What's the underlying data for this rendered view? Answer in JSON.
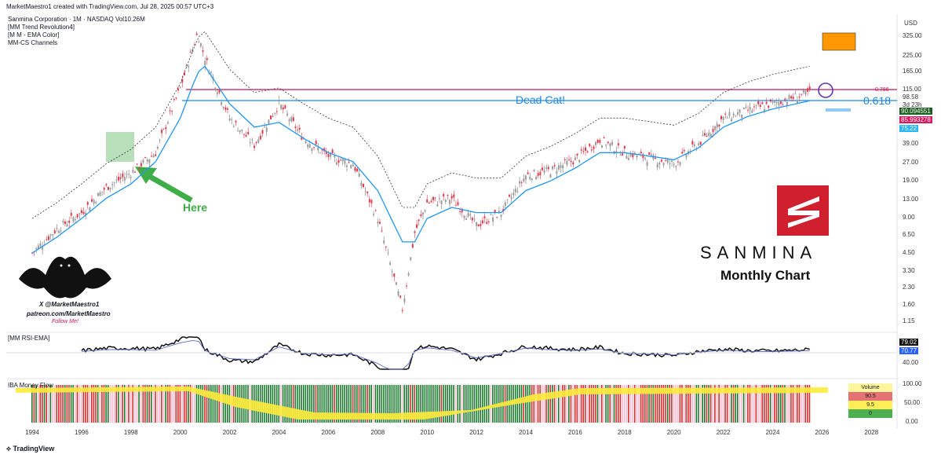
{
  "header": {
    "creator": "MarketMaestro1 created with TradingView.com, Jul 28, 2025 00:57 UTC+3",
    "symbol_line": "Sanmina Corporation · 1M · NASDAQ  Vol10.26M",
    "indicator_1": "[MM Trend Revolution4]",
    "indicator_2": "[M M - EMA Color]",
    "indicator_3": "MM-CS Channels",
    "currency": "USD"
  },
  "price_axis": [
    "325.00",
    "225.00",
    "165.00",
    "115.00",
    "98.58",
    "3d 23h",
    "39.00",
    "27.00",
    "19.00",
    "13.00",
    "9.00",
    "6.50",
    "4.50",
    "3.30",
    "2.30",
    "1.60",
    "1.15"
  ],
  "price_tags": {
    "last": "90.094551",
    "ema": "85.993278",
    "lower": "75.22",
    "fib_786": "0.786",
    "fib_618": "0.618"
  },
  "annotations": {
    "dead_cat": "Dead Cat!",
    "here": "Here",
    "brand": "SANMINA",
    "chart_label": "Monthly Chart",
    "author_1": "X @MarketMaestro1",
    "author_2": "patreon.com/MarketMaestro",
    "author_3": "Follow Me!"
  },
  "rsi": {
    "title": "[MM RSI-EMA]",
    "value_1": "79.02",
    "value_2": "70.77",
    "axis_40": "40.00"
  },
  "money": {
    "title": "IBA Money Flow",
    "axis": [
      "100.00",
      "50.00",
      "0.00"
    ],
    "vol_label": "Volume",
    "vol_1": "90.5",
    "vol_2": "9.5",
    "vol_3": "0"
  },
  "x_axis": [
    "1994",
    "1996",
    "1998",
    "2000",
    "2002",
    "2004",
    "2006",
    "2008",
    "2010",
    "2012",
    "2014",
    "2016",
    "2018",
    "2020",
    "2022",
    "2024",
    "2026",
    "2028"
  ],
  "footer": "TradingView",
  "colors": {
    "up": "#9c9c9c",
    "down": "#e03b4c",
    "ema": "#2196f3",
    "fib_pink": "#c2185b",
    "fib_blue": "#1e88e5",
    "green_arrow": "#3fae49",
    "brand_red": "#d0202e",
    "orange": "#ff9800"
  },
  "chart_data": {
    "type": "line",
    "title": "Sanmina Corporation · 1M · NASDAQ",
    "xlabel": "",
    "ylabel": "USD",
    "scale": "log",
    "ylim": [
      1.0,
      400
    ],
    "x": [
      1994,
      1995,
      1996,
      1997,
      1998,
      1999,
      2000,
      2000.7,
      2001,
      2002,
      2003,
      2004,
      2005,
      2006,
      2007,
      2008,
      2009,
      2009.5,
      2010,
      2011,
      2012,
      2013,
      2014,
      2015,
      2016,
      2017,
      2018,
      2019,
      2020,
      2021,
      2022,
      2023,
      2024,
      2025.5
    ],
    "series": [
      {
        "name": "price",
        "values": [
          4,
          6.5,
          9,
          15,
          20,
          30,
          110,
          330,
          200,
          60,
          35,
          80,
          40,
          28,
          24,
          8,
          1.3,
          6,
          11,
          12,
          7,
          9,
          19,
          21,
          26,
          39,
          30,
          27,
          24,
          36,
          60,
          70,
          80,
          100
        ]
      },
      {
        "name": "ema",
        "values": [
          4,
          5.5,
          8,
          12,
          16,
          25,
          60,
          150,
          170,
          80,
          50,
          55,
          40,
          30,
          25,
          14,
          5,
          5,
          8,
          10,
          9,
          9,
          14,
          17,
          22,
          30,
          30,
          28,
          26,
          33,
          50,
          62,
          72,
          85
        ]
      }
    ],
    "fib_levels": [
      {
        "label": "0.786",
        "value": 110
      },
      {
        "label": "0.618",
        "value": 90
      }
    ]
  }
}
